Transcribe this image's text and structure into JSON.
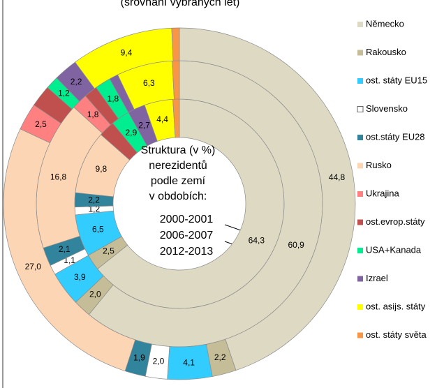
{
  "chart_data": {
    "type": "multi-donut",
    "subtitle": "(srovnání vybraných let)",
    "center_text": [
      "Struktura (v %)",
      "nerezidentů",
      "podle zemí",
      "v obdobích:"
    ],
    "categories": [
      "Německo",
      "Rakousko",
      "ost. státy EU15",
      "Slovensko",
      "ost.státy EU28",
      "Rusko",
      "Ukrajina",
      "ost.evrop.státy",
      "USA+Kanada",
      "Izrael",
      "ost. asijs. státy",
      "ost. státy světa"
    ],
    "colors": [
      "#ddd9c3",
      "#c4bd97",
      "#33ccff",
      "#ffffff",
      "#31849b",
      "#fcd5b4",
      "#ff8080",
      "#c0504d",
      "#00ee90",
      "#8064a2",
      "#ffff00",
      "#f79646"
    ],
    "series": [
      {
        "name": "2000-2001",
        "values": [
          64.3,
          2.5,
          6.5,
          1.2,
          2.2,
          9.8,
          0,
          2.5,
          2.9,
          2.7,
          4.4,
          1.0
        ],
        "value_labels": [
          "64,3",
          "2,5",
          "6,5",
          "1,2",
          "2,2",
          "9,8",
          null,
          null,
          "2,9",
          "2,7",
          "4,4",
          null
        ]
      },
      {
        "name": "2006-2007",
        "values": [
          60.9,
          2.0,
          3.9,
          1.1,
          2.1,
          16.8,
          1.8,
          1.5,
          1.8,
          1.0,
          6.3,
          0.8
        ],
        "value_labels": [
          "60,9",
          "2,0",
          "3,9",
          "1,1",
          "2,1",
          "16,8",
          "1,8",
          null,
          "1,8",
          null,
          "6,3",
          null
        ]
      },
      {
        "name": "2012-2013",
        "values": [
          44.8,
          2.2,
          4.1,
          2.0,
          1.9,
          27.0,
          2.5,
          2.0,
          1.2,
          2.2,
          9.4,
          0.7
        ],
        "value_labels": [
          "44,8",
          "2,2",
          "4,1",
          "2,0",
          "1,9",
          "27,0",
          "2,5",
          null,
          "1,2",
          "2,2",
          "9,4",
          null
        ]
      }
    ]
  }
}
